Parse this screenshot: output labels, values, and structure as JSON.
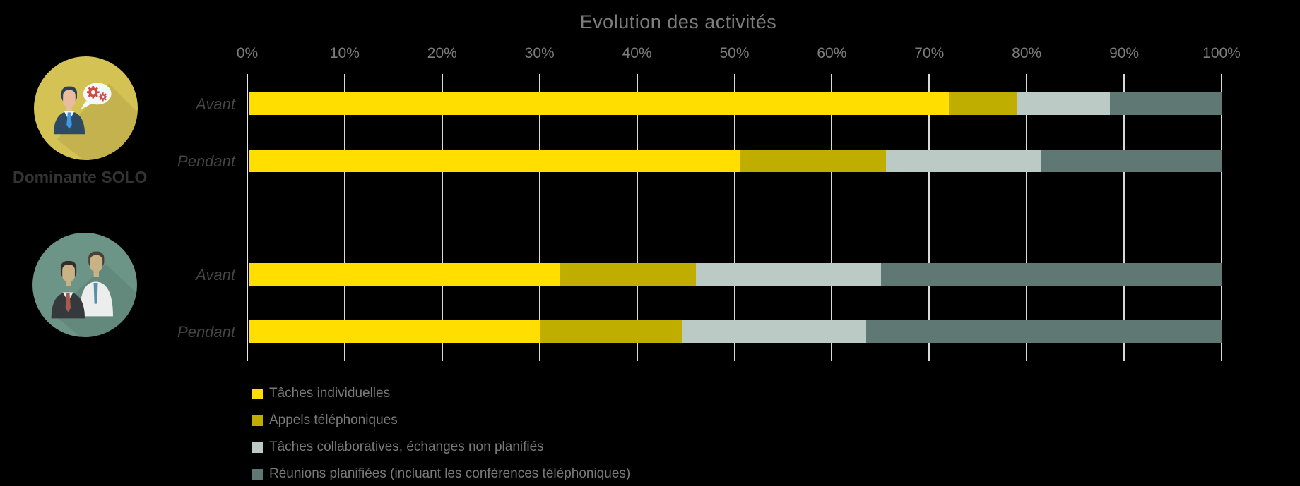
{
  "title": "Evolution des activités",
  "groups": [
    {
      "label": "Dominante SOLO",
      "icon": "solo-speech-gears-icon"
    },
    {
      "label": "",
      "icon": "team-duo-icon"
    }
  ],
  "colors": {
    "background": "#000000",
    "title_text": "#7d7d7d",
    "tick_text": "#7c7c7c",
    "row_label_text": "#454545",
    "group_label_text": "#333333",
    "legend_text": "#7a7a7a",
    "gridline": "#d9d9d9",
    "solo_icon_circle": "#d5c255",
    "team_icon_circle": "#6c9487"
  },
  "chart_data": {
    "type": "bar",
    "orientation": "horizontal-stacked",
    "title": "Evolution des activités",
    "x_axis": {
      "min": 0,
      "max": 100,
      "unit": "%",
      "ticks": [
        "0%",
        "10%",
        "20%",
        "30%",
        "40%",
        "50%",
        "60%",
        "70%",
        "80%",
        "90%",
        "100%"
      ]
    },
    "grid": "on",
    "legend_position": "bottom-left",
    "series": [
      {
        "name": "Tâches individuelles",
        "color": "#FFDE00"
      },
      {
        "name": "Appels téléphoniques",
        "color": "#BFAD00"
      },
      {
        "name": "Tâches collaboratives, échanges non planifiés",
        "color": "#BCCAC6"
      },
      {
        "name": "Réunions planifiées (incluant les conférences téléphoniques)",
        "color": "#5F7874"
      }
    ],
    "rows": [
      {
        "group": "Dominante SOLO",
        "label": "Avant",
        "values": [
          72,
          7,
          9.5,
          11.5
        ]
      },
      {
        "group": "Dominante SOLO",
        "label": "Pendant",
        "values": [
          50.5,
          15,
          16,
          18.5
        ]
      },
      {
        "group": "",
        "label": "Avant",
        "values": [
          32,
          14,
          19,
          35
        ]
      },
      {
        "group": "",
        "label": "Pendant",
        "values": [
          30,
          14.5,
          19,
          36.5
        ]
      }
    ]
  }
}
